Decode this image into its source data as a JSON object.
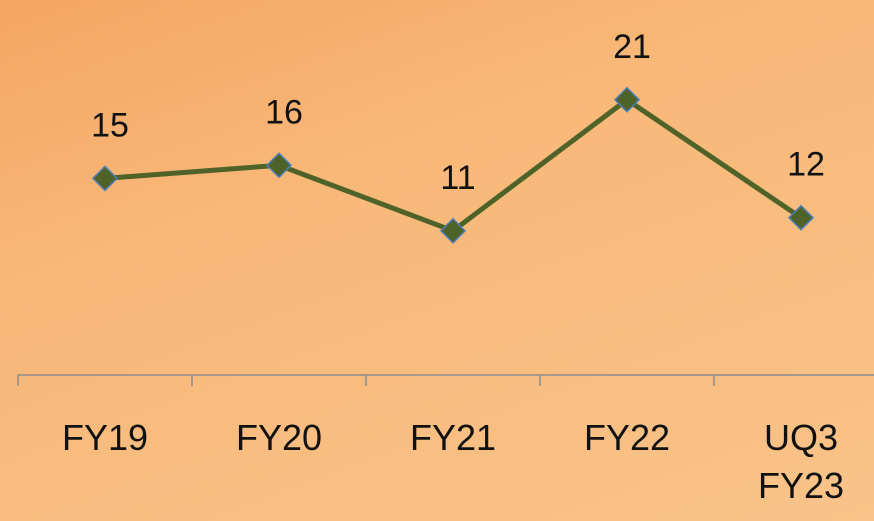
{
  "chart_data": {
    "type": "line",
    "categories": [
      "FY19",
      "FY20",
      "FY21",
      "FY22",
      "UQ3 FY23"
    ],
    "values": [
      15,
      16,
      11,
      21,
      12
    ],
    "color": "#4f6228",
    "marker": "diamond",
    "ylim": [
      0,
      28
    ]
  }
}
